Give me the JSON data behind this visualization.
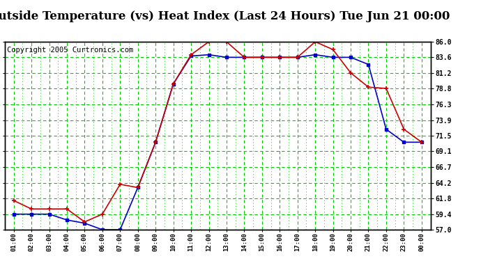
{
  "title": "Outside Temperature (vs) Heat Index (Last 24 Hours) Tue Jun 21 00:00",
  "copyright": "Copyright 2005 Curtronics.com",
  "x_labels": [
    "01:00",
    "02:00",
    "03:00",
    "04:00",
    "05:00",
    "06:00",
    "07:00",
    "08:00",
    "09:00",
    "10:00",
    "11:00",
    "12:00",
    "13:00",
    "14:00",
    "15:00",
    "16:00",
    "17:00",
    "18:00",
    "19:00",
    "20:00",
    "21:00",
    "22:00",
    "23:00",
    "00:00"
  ],
  "blue_data": [
    59.4,
    59.4,
    59.4,
    58.5,
    58.0,
    57.0,
    57.0,
    63.5,
    70.5,
    79.5,
    83.8,
    84.0,
    83.6,
    83.6,
    83.6,
    83.6,
    83.6,
    84.0,
    83.6,
    83.6,
    82.5,
    72.5,
    70.5,
    70.5
  ],
  "red_data": [
    61.5,
    60.2,
    60.2,
    60.2,
    58.2,
    59.4,
    64.0,
    63.5,
    70.5,
    79.5,
    84.0,
    86.0,
    86.0,
    83.6,
    83.6,
    83.6,
    83.6,
    86.0,
    84.8,
    81.2,
    79.0,
    78.8,
    72.5,
    70.5
  ],
  "ylim": [
    57.0,
    86.0
  ],
  "yticks": [
    57.0,
    59.4,
    61.8,
    64.2,
    66.7,
    69.1,
    71.5,
    73.9,
    76.3,
    78.8,
    81.2,
    83.6,
    86.0
  ],
  "blue_color": "#0000cc",
  "red_color": "#cc0000",
  "green_color": "#00cc00",
  "bg_color": "#ffffff",
  "title_fontsize": 12,
  "copyright_fontsize": 7.5
}
